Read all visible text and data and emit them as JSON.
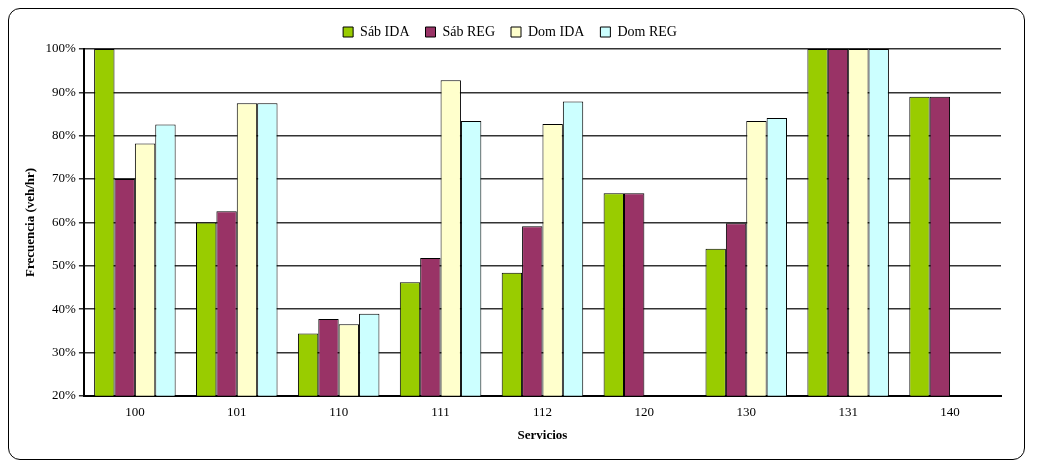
{
  "chart_data": {
    "type": "bar",
    "xlabel": "Servicios",
    "ylabel": "Frecuencia (veh/hr)",
    "categories": [
      "100",
      "101",
      "110",
      "111",
      "112",
      "120",
      "130",
      "131",
      "140"
    ],
    "series": [
      {
        "name": "Sáb IDA",
        "color": "#99cc00",
        "values": [
          100,
          60,
          34.4,
          46.2,
          48.4,
          66.7,
          53.9,
          100,
          89
        ]
      },
      {
        "name": "Sáb REG",
        "color": "#993366",
        "values": [
          70,
          62.6,
          37.7,
          51.8,
          59.1,
          66.7,
          59.8,
          100,
          89
        ]
      },
      {
        "name": "Dom IDA",
        "color": "#ffffcc",
        "values": [
          78.2,
          87.5,
          36.5,
          92.8,
          82.7,
          null,
          83.4,
          100,
          null
        ]
      },
      {
        "name": "Dom REG",
        "color": "#ccffff",
        "values": [
          82.6,
          87.5,
          38.9,
          83.4,
          87.9,
          null,
          84.1,
          100,
          null
        ]
      }
    ],
    "ylim": [
      20,
      100
    ],
    "yticks": [
      {
        "value": 20,
        "label": "20%"
      },
      {
        "value": 30,
        "label": "30%"
      },
      {
        "value": 40,
        "label": "40%"
      },
      {
        "value": 50,
        "label": "50%"
      },
      {
        "value": 60,
        "label": "60%"
      },
      {
        "value": 70,
        "label": "70%"
      },
      {
        "value": 80,
        "label": "80%"
      },
      {
        "value": 90,
        "label": "90%"
      },
      {
        "value": 100,
        "label": "100%"
      }
    ],
    "grid": "y",
    "legend": "top"
  }
}
